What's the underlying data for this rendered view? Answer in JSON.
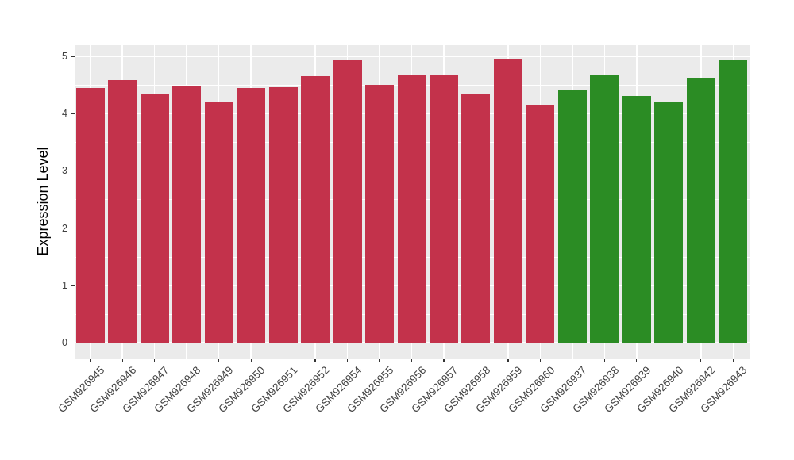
{
  "chart_data": {
    "type": "bar",
    "title": "",
    "xlabel": "",
    "ylabel": "Expression Level",
    "categories": [
      "GSM926945",
      "GSM926946",
      "GSM926947",
      "GSM926948",
      "GSM926949",
      "GSM926950",
      "GSM926951",
      "GSM926952",
      "GSM926954",
      "GSM926955",
      "GSM926956",
      "GSM926957",
      "GSM926958",
      "GSM926959",
      "GSM926960",
      "GSM926937",
      "GSM926938",
      "GSM926939",
      "GSM926940",
      "GSM926942",
      "GSM926943"
    ],
    "values": [
      4.45,
      4.58,
      4.35,
      4.48,
      4.21,
      4.44,
      4.46,
      4.65,
      4.93,
      4.5,
      4.66,
      4.68,
      4.35,
      4.94,
      4.15,
      4.4,
      4.67,
      4.31,
      4.21,
      4.63,
      4.93
    ],
    "bar_groups": [
      "red",
      "red",
      "red",
      "red",
      "red",
      "red",
      "red",
      "red",
      "red",
      "red",
      "red",
      "red",
      "red",
      "red",
      "red",
      "green",
      "green",
      "green",
      "green",
      "green",
      "green"
    ],
    "group_colors": {
      "red": "#C3324B",
      "green": "#2B8C24"
    },
    "yticks": [
      "0",
      "1",
      "2",
      "3",
      "4",
      "5"
    ],
    "ytick_values": [
      0,
      1,
      2,
      3,
      4,
      5
    ],
    "minor_tick_values": [
      0.5,
      1.5,
      2.5,
      3.5,
      4.5
    ],
    "ylim": [
      -0.25,
      5.19
    ],
    "legend": "none",
    "grid": "on",
    "panel_background": "#EBEBEB",
    "gridline_color": "#FFFFFF",
    "tick_color": "#333333",
    "axis_text_color": "#404040"
  }
}
